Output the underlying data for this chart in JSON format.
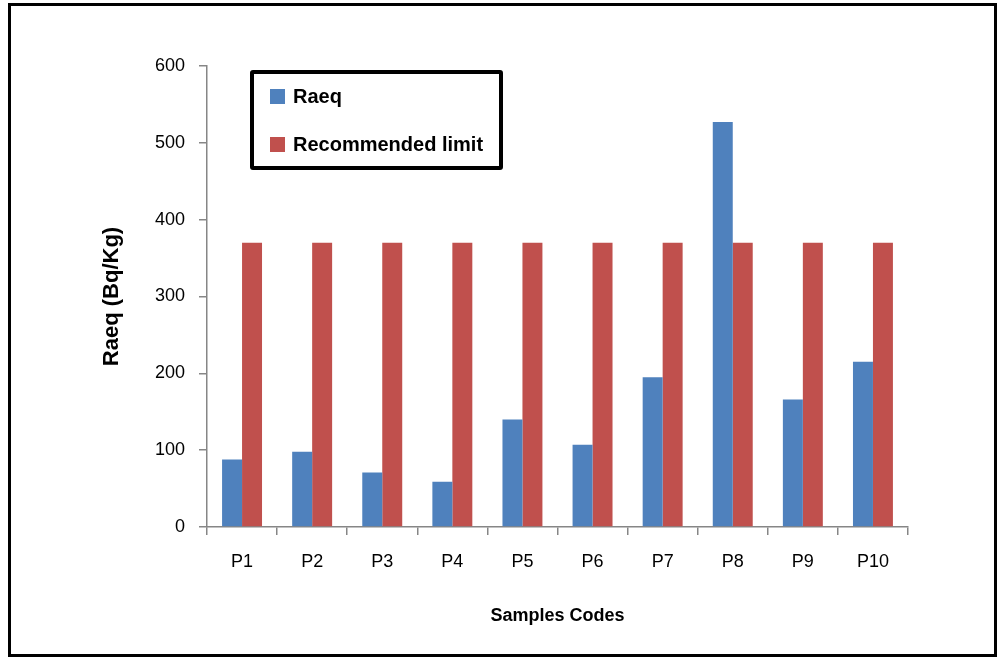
{
  "chart_data": {
    "type": "bar",
    "xlabel": "Samples Codes",
    "ylabel": "Raeq (Bq/Kg)",
    "categories": [
      "P1",
      "P2",
      "P3",
      "P4",
      "P5",
      "P6",
      "P7",
      "P8",
      "P9",
      "P10"
    ],
    "series": [
      {
        "name": "Raeq",
        "color": "#4f81bd",
        "values": [
          88,
          98,
          71,
          59,
          140,
          107,
          195,
          527,
          166,
          215
        ]
      },
      {
        "name": "Recommended limit",
        "color": "#c0504d",
        "values": [
          370,
          370,
          370,
          370,
          370,
          370,
          370,
          370,
          370,
          370
        ]
      }
    ],
    "ylim": [
      0,
      600
    ],
    "yticks": [
      0,
      100,
      200,
      300,
      400,
      500,
      600
    ],
    "grid": false,
    "legend": "top left"
  }
}
